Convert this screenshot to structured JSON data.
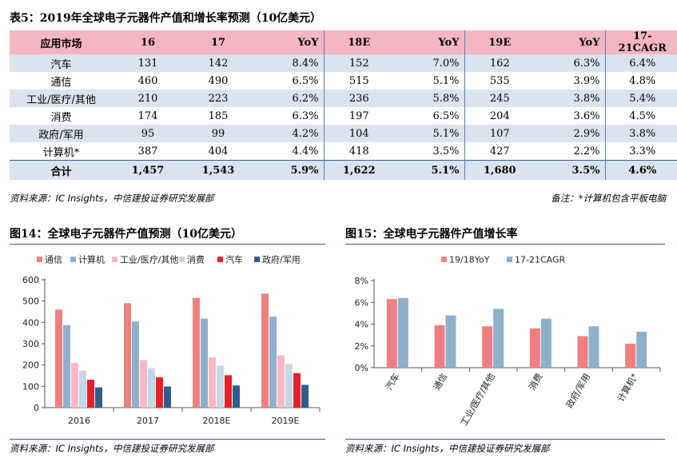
{
  "table": {
    "title": "表5：2019年全球电子元器件产值和增长率预测（10亿美元）",
    "headers": [
      "应用市场",
      "16",
      "17",
      "YoY",
      "18E",
      "YoY",
      "19E",
      "YoY",
      "17-21CAGR"
    ],
    "rows": [
      {
        "name": "汽车",
        "v16": "131",
        "v17": "142",
        "yoy17": "8.4%",
        "v18": "152",
        "yoy18": "7.0%",
        "v19": "162",
        "yoy19": "6.3%",
        "cagr": "6.4%"
      },
      {
        "name": "通信",
        "v16": "460",
        "v17": "490",
        "yoy17": "6.5%",
        "v18": "515",
        "yoy18": "5.1%",
        "v19": "535",
        "yoy19": "3.9%",
        "cagr": "4.8%"
      },
      {
        "name": "工业/医疗/其他",
        "v16": "210",
        "v17": "223",
        "yoy17": "6.2%",
        "v18": "236",
        "yoy18": "5.8%",
        "v19": "245",
        "yoy19": "3.8%",
        "cagr": "5.4%"
      },
      {
        "name": "消费",
        "v16": "174",
        "v17": "185",
        "yoy17": "6.3%",
        "v18": "197",
        "yoy18": "6.5%",
        "v19": "204",
        "yoy19": "3.6%",
        "cagr": "4.5%"
      },
      {
        "name": "政府/军用",
        "v16": "95",
        "v17": "99",
        "yoy17": "4.2%",
        "v18": "104",
        "yoy18": "5.1%",
        "v19": "107",
        "yoy19": "2.9%",
        "cagr": "3.8%"
      },
      {
        "name": "计算机*",
        "v16": "387",
        "v17": "404",
        "yoy17": "4.4%",
        "v18": "418",
        "yoy18": "3.5%",
        "v19": "427",
        "yoy19": "2.2%",
        "cagr": "3.3%"
      }
    ],
    "total": {
      "name": "合计",
      "v16": "1,457",
      "v17": "1,543",
      "yoy17": "5.9%",
      "v18": "1,622",
      "yoy18": "5.1%",
      "v19": "1,680",
      "yoy19": "3.5%",
      "cagr": "4.6%"
    },
    "source": "资料来源：IC Insights，中信建投证券研究发展部",
    "note": "备注：*计算机包含平板电脑"
  },
  "fig14": {
    "title": "图14：全球电子元器件产值预测（10亿美元）",
    "source": "资料来源：IC Insights，中信建投证券研究发展部"
  },
  "fig15": {
    "title": "图15：全球电子元器件产值增长率",
    "source": "资料来源：IC Insights，中信建投证券研究发展部"
  },
  "chart_data": [
    {
      "type": "bar",
      "title": "图14：全球电子元器件产值预测（10亿美元）",
      "categories": [
        "2016",
        "2017",
        "2018E",
        "2019E"
      ],
      "series": [
        {
          "name": "通信",
          "color": "#f08080",
          "values": [
            460,
            490,
            515,
            535
          ]
        },
        {
          "name": "计算机",
          "color": "#8fb0cc",
          "values": [
            387,
            404,
            418,
            427
          ]
        },
        {
          "name": "工业/医疗/其他",
          "color": "#f9b9c3",
          "values": [
            210,
            223,
            236,
            245
          ]
        },
        {
          "name": "消费",
          "color": "#c5d6e6",
          "values": [
            174,
            185,
            197,
            204
          ]
        },
        {
          "name": "汽车",
          "color": "#e8202a",
          "values": [
            131,
            142,
            152,
            162
          ]
        },
        {
          "name": "政府/军用",
          "color": "#2e5e8e",
          "values": [
            95,
            99,
            104,
            107
          ]
        }
      ],
      "yticks": [
        "0",
        "100",
        "200",
        "300",
        "400",
        "500",
        "600"
      ],
      "ylim": [
        0,
        600
      ],
      "legend": "top"
    },
    {
      "type": "bar",
      "title": "图15：全球电子元器件产值增长率",
      "categories": [
        "汽车",
        "通信",
        "工业/医疗/其他",
        "消费",
        "政府/军用",
        "计算机*"
      ],
      "series": [
        {
          "name": "19/18YoY",
          "color": "#f08080",
          "values": [
            6.3,
            3.9,
            3.8,
            3.6,
            2.9,
            2.2
          ]
        },
        {
          "name": "17-21CAGR",
          "color": "#8fb0cc",
          "values": [
            6.4,
            4.8,
            5.4,
            4.5,
            3.8,
            3.3
          ]
        }
      ],
      "yticks": [
        "0%",
        "2%",
        "4%",
        "6%",
        "8%"
      ],
      "ylim": [
        0,
        8
      ],
      "legend": "top"
    }
  ]
}
